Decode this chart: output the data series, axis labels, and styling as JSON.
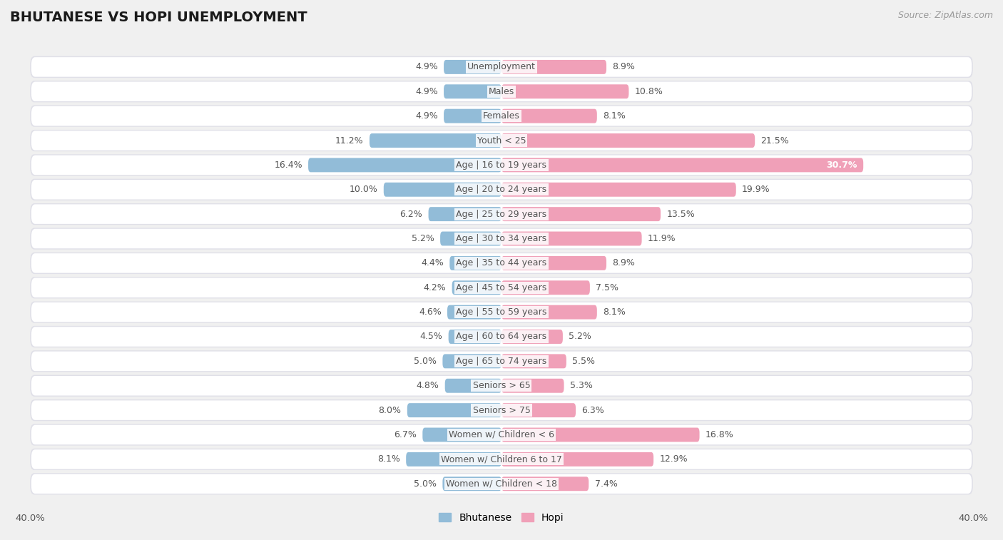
{
  "title": "BHUTANESE VS HOPI UNEMPLOYMENT",
  "source": "Source: ZipAtlas.com",
  "categories": [
    "Unemployment",
    "Males",
    "Females",
    "Youth < 25",
    "Age | 16 to 19 years",
    "Age | 20 to 24 years",
    "Age | 25 to 29 years",
    "Age | 30 to 34 years",
    "Age | 35 to 44 years",
    "Age | 45 to 54 years",
    "Age | 55 to 59 years",
    "Age | 60 to 64 years",
    "Age | 65 to 74 years",
    "Seniors > 65",
    "Seniors > 75",
    "Women w/ Children < 6",
    "Women w/ Children 6 to 17",
    "Women w/ Children < 18"
  ],
  "bhutanese": [
    4.9,
    4.9,
    4.9,
    11.2,
    16.4,
    10.0,
    6.2,
    5.2,
    4.4,
    4.2,
    4.6,
    4.5,
    5.0,
    4.8,
    8.0,
    6.7,
    8.1,
    5.0
  ],
  "hopi": [
    8.9,
    10.8,
    8.1,
    21.5,
    30.7,
    19.9,
    13.5,
    11.9,
    8.9,
    7.5,
    8.1,
    5.2,
    5.5,
    5.3,
    6.3,
    16.8,
    12.9,
    7.4
  ],
  "bhutanese_color": "#92bcd8",
  "hopi_color": "#f0a0b8",
  "background_color": "#f0f0f0",
  "row_bg_color": "#ffffff",
  "row_outer_color": "#e0e0e8",
  "axis_limit": 40.0,
  "bar_height": 0.58,
  "label_fontsize": 9.0,
  "category_fontsize": 9.0,
  "title_fontsize": 14,
  "source_fontsize": 9.0,
  "value_color": "#555555",
  "category_color": "#555555"
}
